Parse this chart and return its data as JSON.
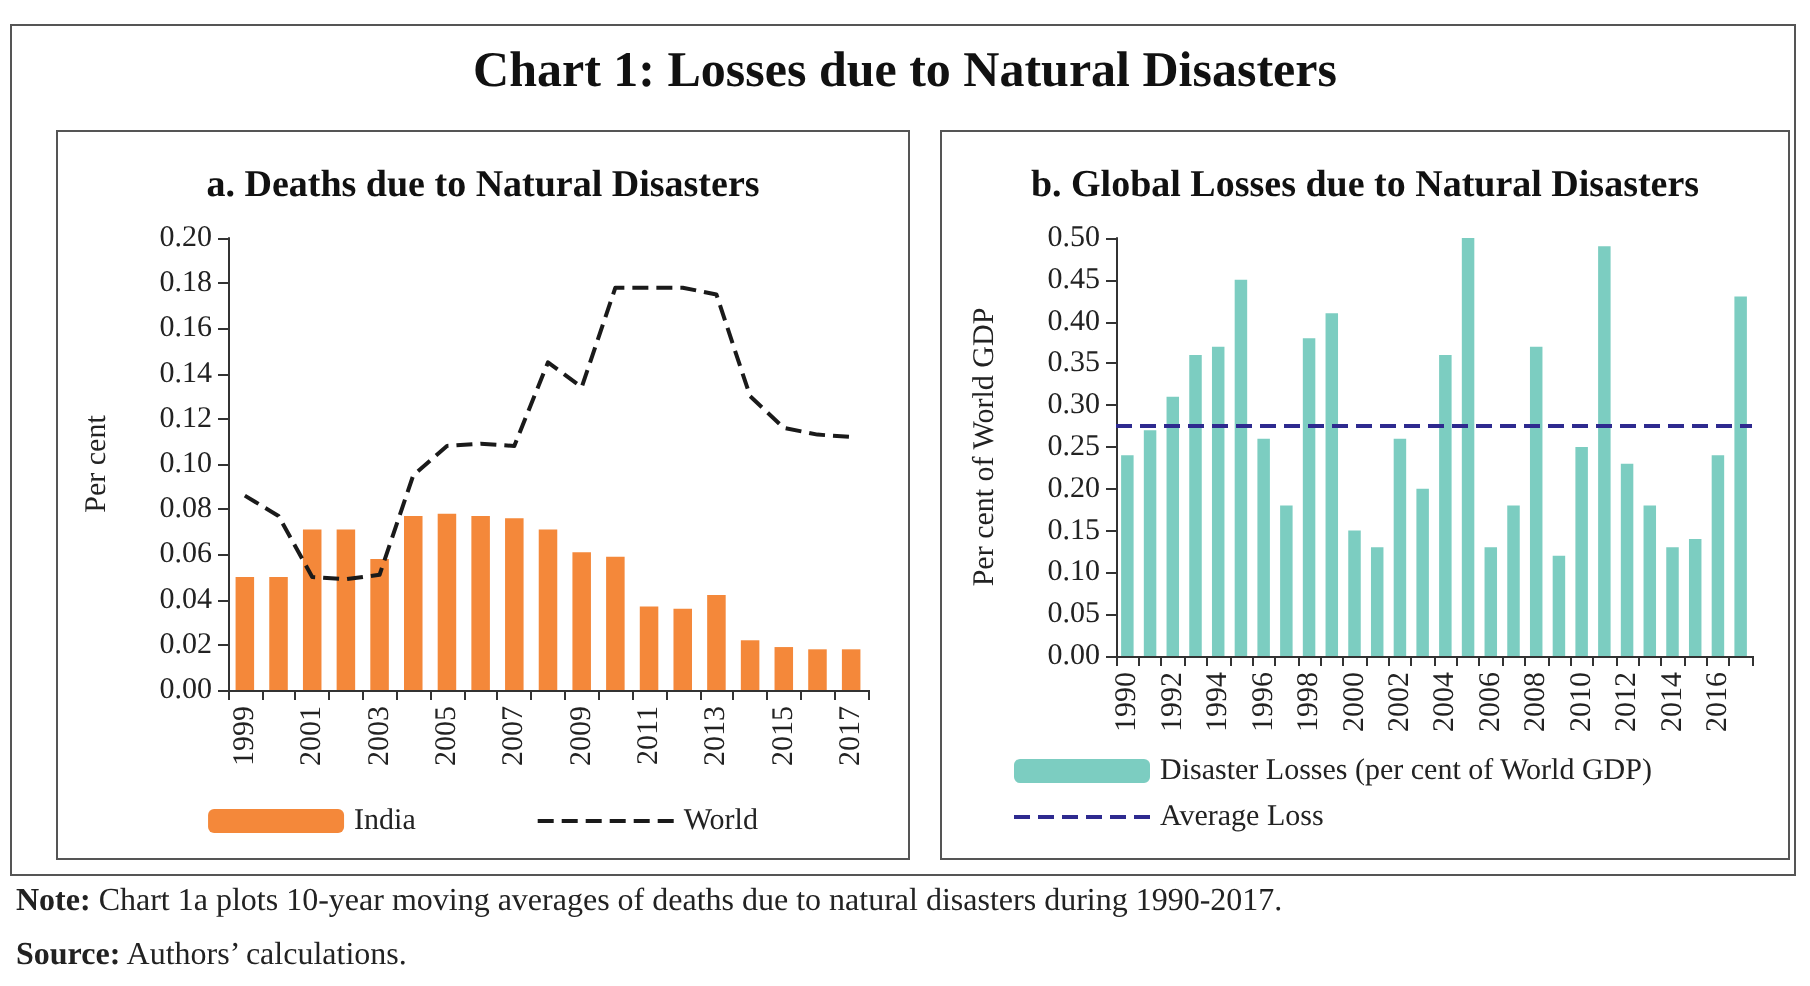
{
  "chart_data": [
    {
      "type": "other",
      "title": "Chart 1: Losses due to Natural Disasters",
      "annotations": [
        "Note: Chart 1a plots 10-year moving averages of deaths due to natural disasters during 1990-2017.",
        "Source: Authors’ calculations."
      ]
    },
    {
      "type": "bar",
      "title": "a. Deaths due to Natural Disasters",
      "ylabel": "Per cent",
      "categories": [
        "1999",
        null,
        "2001",
        null,
        "2003",
        null,
        "2005",
        null,
        "2007",
        null,
        "2009",
        null,
        "2011",
        null,
        "2013",
        null,
        "2015",
        null,
        "2017"
      ],
      "series": [
        {
          "name": "India",
          "type": "bar",
          "color": "#f4883a",
          "values": [
            0.05,
            0.05,
            0.071,
            0.071,
            0.058,
            0.077,
            0.078,
            0.077,
            0.076,
            0.071,
            0.061,
            0.059,
            0.037,
            0.036,
            0.042,
            0.022,
            0.019,
            0.018,
            0.018
          ]
        },
        {
          "name": "World",
          "type": "line",
          "color": "#1a1a1a",
          "line_style": "dashed",
          "values": [
            0.086,
            0.077,
            0.05,
            0.049,
            0.051,
            0.095,
            0.108,
            0.109,
            0.108,
            0.145,
            0.134,
            0.178,
            0.178,
            0.178,
            0.175,
            0.13,
            0.116,
            0.113,
            0.112
          ]
        }
      ],
      "ylim": [
        0,
        0.2
      ],
      "yticks": [
        {
          "value": 0,
          "label": "0.00"
        },
        {
          "value": 0.02,
          "label": "0.02"
        },
        {
          "value": 0.04,
          "label": "0.04"
        },
        {
          "value": 0.06,
          "label": "0.06"
        },
        {
          "value": 0.08,
          "label": "0.08"
        },
        {
          "value": 0.1,
          "label": "0.10"
        },
        {
          "value": 0.12,
          "label": "0.12"
        },
        {
          "value": 0.14,
          "label": "0.14"
        },
        {
          "value": 0.16,
          "label": "0.16"
        },
        {
          "value": 0.18,
          "label": "0.18"
        },
        {
          "value": 0.2,
          "label": "0.20"
        }
      ],
      "grid": false,
      "legend": "bottom",
      "marker": "none"
    },
    {
      "type": "bar",
      "title": "b. Global Losses due to Natural Disasters",
      "ylabel": "Per cent of World GDP",
      "categories": [
        "1990",
        null,
        "1992",
        null,
        "1994",
        null,
        "1996",
        null,
        "1998",
        null,
        "2000",
        null,
        "2002",
        null,
        "2004",
        null,
        "2006",
        null,
        "2008",
        null,
        "2010",
        null,
        "2012",
        null,
        "2014",
        null,
        "2016",
        null
      ],
      "series": [
        {
          "name": "Disaster Losses (per cent of World GDP)",
          "color": "#7ccdc1",
          "values": [
            0.24,
            0.27,
            0.31,
            0.36,
            0.37,
            0.45,
            0.26,
            0.18,
            0.38,
            0.41,
            0.15,
            0.13,
            0.26,
            0.2,
            0.36,
            0.5,
            0.13,
            0.18,
            0.37,
            0.12,
            0.25,
            0.49,
            0.23,
            0.18,
            0.13,
            0.14,
            0.24,
            0.43
          ]
        }
      ],
      "ref_lines": [
        {
          "axis": "y",
          "value": 0.275,
          "label": "Average Loss",
          "color": "#2e2a8f",
          "line_style": "dashed"
        }
      ],
      "ylim": [
        0,
        0.5
      ],
      "yticks": [
        {
          "value": 0,
          "label": "0.00"
        },
        {
          "value": 0.05,
          "label": "0.05"
        },
        {
          "value": 0.1,
          "label": "0.10"
        },
        {
          "value": 0.15,
          "label": "0.15"
        },
        {
          "value": 0.2,
          "label": "0.20"
        },
        {
          "value": 0.25,
          "label": "0.25"
        },
        {
          "value": 0.3,
          "label": "0.30"
        },
        {
          "value": 0.35,
          "label": "0.35"
        },
        {
          "value": 0.4,
          "label": "0.40"
        },
        {
          "value": 0.45,
          "label": "0.45"
        },
        {
          "value": 0.5,
          "label": "0.50"
        }
      ],
      "grid": false,
      "legend": "bottom"
    }
  ]
}
